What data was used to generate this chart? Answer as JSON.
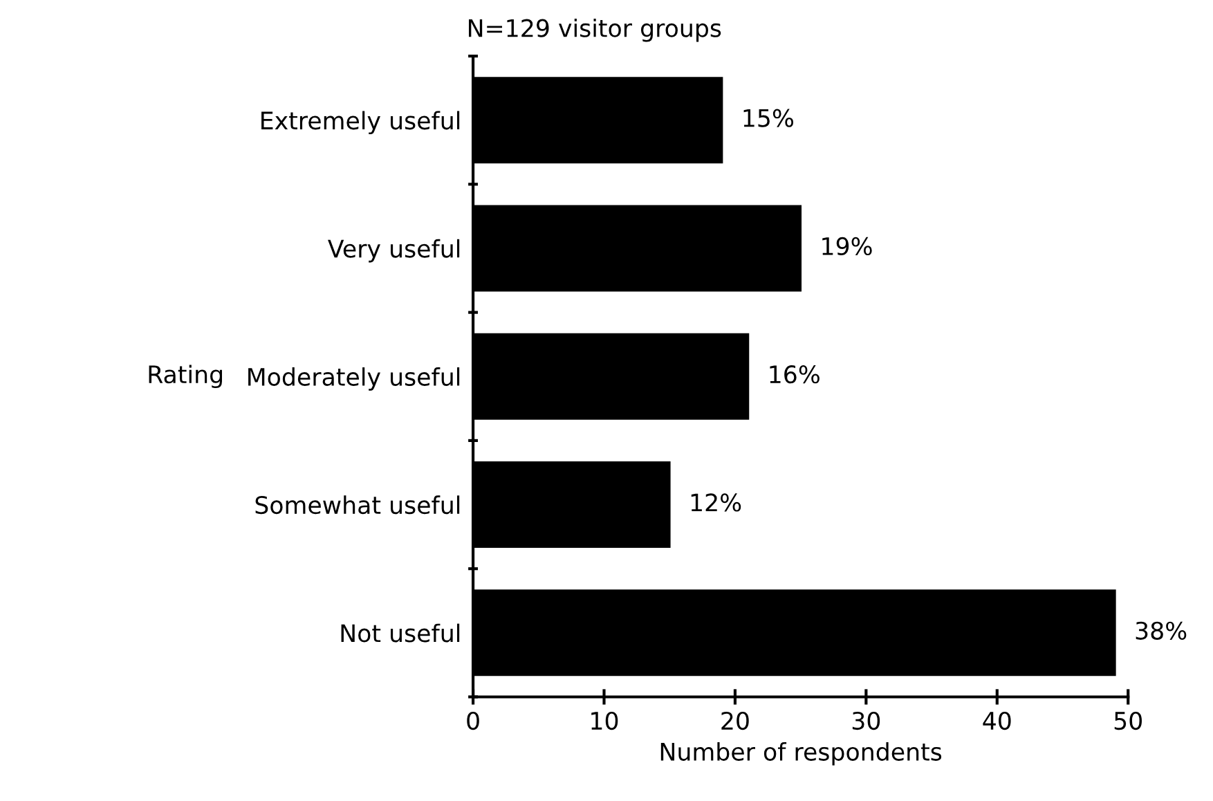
{
  "chart_data": {
    "type": "bar",
    "orientation": "horizontal",
    "title": "N=129 visitor groups",
    "xlabel": "Number of respondents",
    "ylabel": "Rating",
    "categories": [
      "Extremely useful",
      "Very useful",
      "Moderately useful",
      "Somewhat useful",
      "Not useful"
    ],
    "values": [
      19,
      25,
      21,
      15,
      49
    ],
    "annotations": [
      {
        "text": "15%",
        "x": 19,
        "y": "Extremely useful"
      },
      {
        "text": "19%",
        "x": 25,
        "y": "Very useful"
      },
      {
        "text": "16%",
        "x": 21,
        "y": "Moderately useful"
      },
      {
        "text": "12%",
        "x": 15,
        "y": "Somewhat useful"
      },
      {
        "text": "38%",
        "x": 49,
        "y": "Not useful"
      }
    ],
    "color": "#000000",
    "xlim": [
      0,
      50
    ],
    "xticks": [
      0,
      10,
      20,
      30,
      40,
      50
    ],
    "grid": false,
    "legend": false
  }
}
